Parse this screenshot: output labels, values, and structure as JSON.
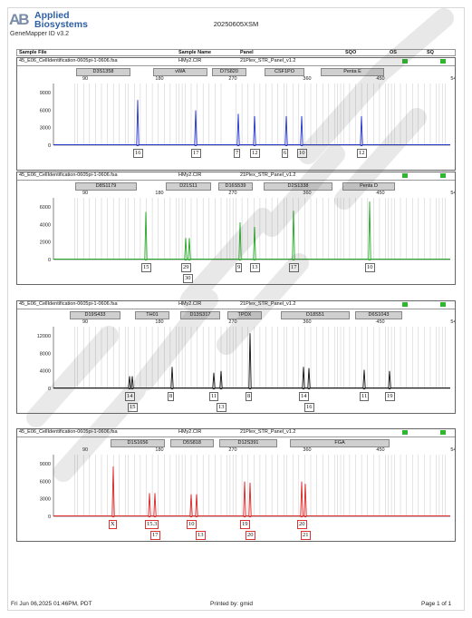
{
  "brand": {
    "logo_mark": "AB",
    "name_line1": "Applied",
    "name_line2": "Biosystems",
    "app_version": "GeneMapper ID v3.2"
  },
  "report_title": "20250605XSM",
  "header": {
    "sample_file": "Sample File",
    "sample_name": "Sample Name",
    "panel": "Panel",
    "sqo": "SQO",
    "os": "OS",
    "sq": "SQ"
  },
  "x_ticks": [
    "90",
    "180",
    "270",
    "360",
    "450",
    "540"
  ],
  "footer": {
    "date": "Fri Jun 06,2025 01:46PM, PDT",
    "printed_by": "Printed by: gmid",
    "page": "Page 1 of 1"
  },
  "status_color": "#2fb52f",
  "panels": [
    {
      "sample_file": "45_E06_CellIdentification-0605pi-1-0606.fsa",
      "sample_name": "HMy2.CIR",
      "panel": "21Plex_STR_Panel_v1.2",
      "color": "#2233cc",
      "y_ticks": [
        "9000",
        "6000",
        "3000",
        "0"
      ],
      "markers": [
        "D3S1358",
        "vWA",
        "D7S820",
        "CSF1PO",
        "Penta E"
      ],
      "alleles": [
        {
          "label": "16",
          "row": 0
        },
        {
          "label": "17",
          "row": 0
        },
        {
          "label": "7",
          "row": 0
        },
        {
          "label": "12",
          "row": 0
        },
        {
          "label": "6",
          "row": 0
        },
        {
          "label": "10",
          "row": 0
        },
        {
          "label": "12",
          "row": 0
        }
      ]
    },
    {
      "sample_file": "45_E06_CellIdentification-0605pi-1-0606.fsa",
      "sample_name": "HMy2.CIR",
      "panel": "21Plex_STR_Panel_v1.2",
      "color": "#22aa22",
      "y_ticks": [
        "6000",
        "4000",
        "2000",
        "0"
      ],
      "markers": [
        "D8S1179",
        "D21S11",
        "D16S539",
        "D2S1338",
        "Penta D"
      ],
      "alleles": [
        {
          "label": "15",
          "row": 0
        },
        {
          "label": "29",
          "row": 0
        },
        {
          "label": "30",
          "row": 1
        },
        {
          "label": "9",
          "row": 0
        },
        {
          "label": "13",
          "row": 0
        },
        {
          "label": "17",
          "row": 0
        },
        {
          "label": "10",
          "row": 0
        }
      ]
    },
    {
      "sample_file": "45_E06_CellIdentification-0605pi-1-0606.fsa",
      "sample_name": "HMy2.CIR",
      "panel": "21Plex_STR_Panel_v1.2",
      "color": "#111111",
      "y_ticks": [
        "12000",
        "8000",
        "4000",
        "0"
      ],
      "markers": [
        "D19S433",
        "TH01",
        "D13S317",
        "TPOX",
        "D18S51",
        "D6S1043"
      ],
      "alleles": [
        {
          "label": "14",
          "row": 0
        },
        {
          "label": "15",
          "row": 1
        },
        {
          "label": "8",
          "row": 0
        },
        {
          "label": "11",
          "row": 0
        },
        {
          "label": "13",
          "row": 1
        },
        {
          "label": "8",
          "row": 0
        },
        {
          "label": "14",
          "row": 0
        },
        {
          "label": "16",
          "row": 1
        },
        {
          "label": "11",
          "row": 0
        },
        {
          "label": "19",
          "row": 0
        }
      ]
    },
    {
      "sample_file": "45_E06_CellIdentification-0605pi-1-0606.fsa",
      "sample_name": "HMy2.CIR",
      "panel": "21Plex_STR_Panel_v1.2",
      "color": "#dd2222",
      "y_ticks": [
        "9000",
        "6000",
        "3000",
        "0"
      ],
      "markers": [
        "D1S1656",
        "D5S818",
        "D12S391",
        "FGA"
      ],
      "alleles": [
        {
          "label": "X",
          "row": 0
        },
        {
          "label": "15.3",
          "row": 0
        },
        {
          "label": "17",
          "row": 1
        },
        {
          "label": "10",
          "row": 0
        },
        {
          "label": "13",
          "row": 1
        },
        {
          "label": "19",
          "row": 0
        },
        {
          "label": "20",
          "row": 1
        },
        {
          "label": "20",
          "row": 0
        },
        {
          "label": "21",
          "row": 1
        }
      ]
    }
  ]
}
